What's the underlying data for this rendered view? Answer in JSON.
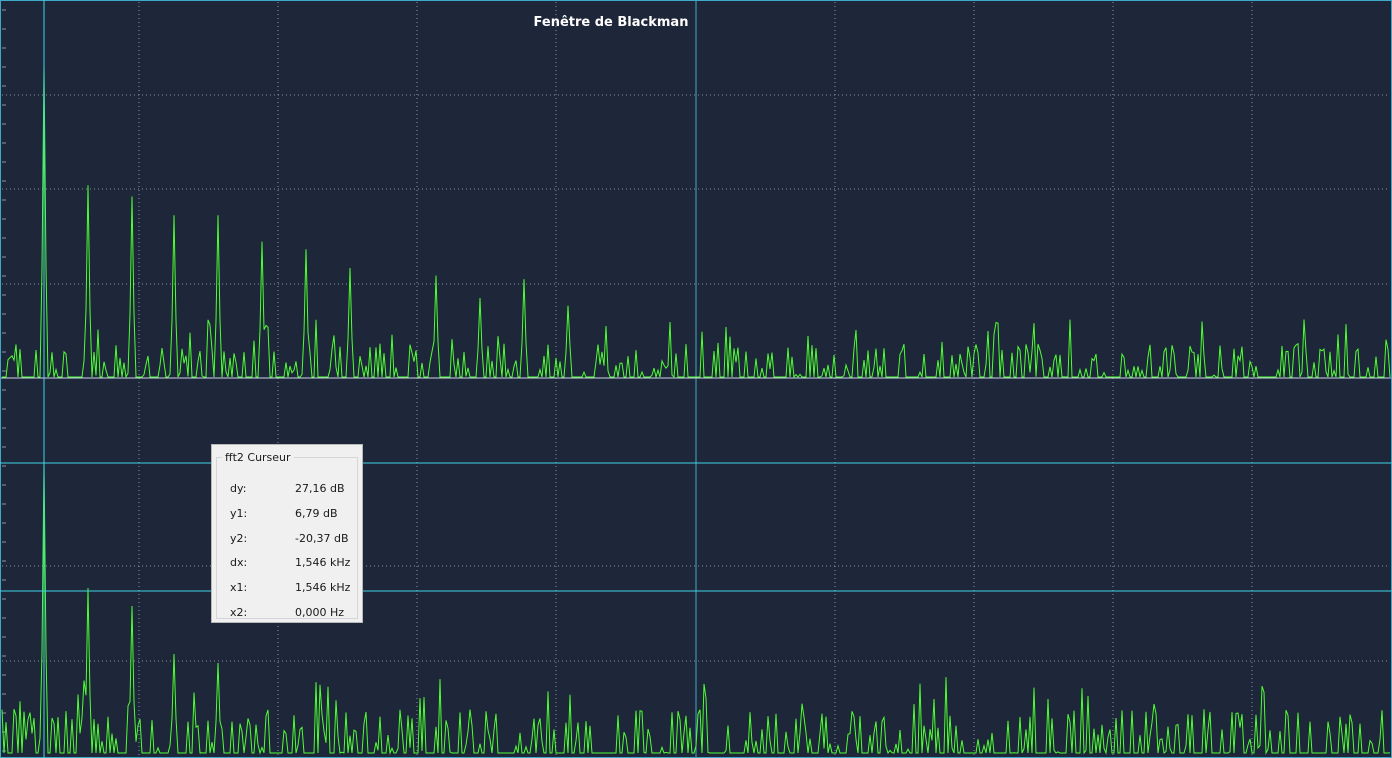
{
  "title": "Fenêtre de Blackman",
  "cursor_panel": {
    "title": "fft2 Curseur",
    "rows": [
      {
        "label": "dy:",
        "value": "27,16 dB"
      },
      {
        "label": "y1:",
        "value": "6,79 dB"
      },
      {
        "label": "y2:",
        "value": "-20,37 dB"
      },
      {
        "label": "dx:",
        "value": "1,546 kHz"
      },
      {
        "label": "x1:",
        "value": "1,546 kHz"
      },
      {
        "label": "x2:",
        "value": "0,000 Hz"
      }
    ]
  },
  "colors": {
    "background": "#1e2639",
    "trace": "#4dff33",
    "cursor": "#3fd6e6",
    "grid": "#8a93a6",
    "frame": "#3fa9c9",
    "title": "#ffffff"
  },
  "traces": {
    "top": {
      "harmonic_peaks": [
        {
          "harmonic": 1,
          "level": 0.83
        },
        {
          "harmonic": 2,
          "level": 0.51
        },
        {
          "harmonic": 3,
          "level": 0.48
        },
        {
          "harmonic": 4,
          "level": 0.43
        },
        {
          "harmonic": 5,
          "level": 0.43
        },
        {
          "harmonic": 6,
          "level": 0.36
        },
        {
          "harmonic": 7,
          "level": 0.34
        },
        {
          "harmonic": 8,
          "level": 0.29
        },
        {
          "harmonic": 10,
          "level": 0.27
        },
        {
          "harmonic": 11,
          "level": 0.21
        },
        {
          "harmonic": 12,
          "level": 0.26
        },
        {
          "harmonic": 13,
          "level": 0.19
        }
      ]
    },
    "bottom": {
      "harmonic_peaks": [
        {
          "harmonic": 1,
          "level": 0.97
        },
        {
          "harmonic": 2,
          "level": 0.55
        },
        {
          "harmonic": 3,
          "level": 0.49
        },
        {
          "harmonic": 4,
          "level": 0.33
        },
        {
          "harmonic": 5,
          "level": 0.3
        }
      ]
    }
  }
}
